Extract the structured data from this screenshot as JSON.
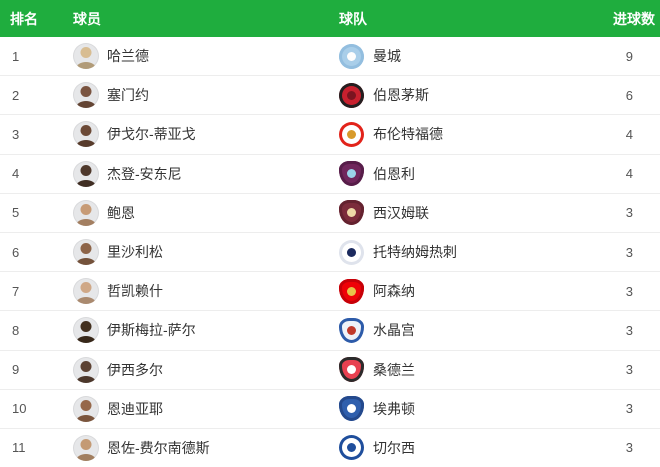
{
  "table": {
    "header_bg": "#1fad3e",
    "headers": {
      "rank": "排名",
      "player": "球员",
      "team": "球队",
      "goals": "进球数"
    },
    "rows": [
      {
        "rank": "1",
        "player": {
          "name": "哈兰德",
          "avatar_tone": "#d8bd92"
        },
        "team": {
          "name": "曼城",
          "badge": {
            "shape": "circle",
            "bg": "#a9cee9",
            "ring": "#93bedf",
            "accent": "#fdfdfd"
          }
        },
        "goals": "9"
      },
      {
        "rank": "2",
        "player": {
          "name": "塞门约",
          "avatar_tone": "#7a5440"
        },
        "team": {
          "name": "伯恩茅斯",
          "badge": {
            "shape": "circle",
            "bg": "#c8202e",
            "ring": "#231f20",
            "accent": "#7a1420"
          }
        },
        "goals": "6"
      },
      {
        "rank": "3",
        "player": {
          "name": "伊戈尔-蒂亚戈",
          "avatar_tone": "#6b4936"
        },
        "team": {
          "name": "布伦特福德",
          "badge": {
            "shape": "circle",
            "bg": "#ffffff",
            "ring": "#e2231a",
            "accent": "#d89a2b"
          }
        },
        "goals": "4"
      },
      {
        "rank": "4",
        "player": {
          "name": "杰登-安东尼",
          "avatar_tone": "#4e382b"
        },
        "team": {
          "name": "伯恩利",
          "badge": {
            "shape": "shield",
            "bg": "#70275d",
            "ring": "#571d49",
            "accent": "#9ad4ea"
          }
        },
        "goals": "4"
      },
      {
        "rank": "5",
        "player": {
          "name": "鲍恩",
          "avatar_tone": "#c79b76"
        },
        "team": {
          "name": "西汉姆联",
          "badge": {
            "shape": "shield",
            "bg": "#7c2c3b",
            "ring": "#64222f",
            "accent": "#efd9a7"
          }
        },
        "goals": "3"
      },
      {
        "rank": "6",
        "player": {
          "name": "里沙利松",
          "avatar_tone": "#8d6448"
        },
        "team": {
          "name": "托特纳姆热刺",
          "badge": {
            "shape": "circle",
            "bg": "#ffffff",
            "ring": "#dfe3ec",
            "accent": "#1b2a5e"
          }
        },
        "goals": "3"
      },
      {
        "rank": "7",
        "player": {
          "name": "哲凯赖什",
          "avatar_tone": "#cfa887"
        },
        "team": {
          "name": "阿森纳",
          "badge": {
            "shape": "shield",
            "bg": "#ef0107",
            "ring": "#c60008",
            "accent": "#e8c24a"
          }
        },
        "goals": "3"
      },
      {
        "rank": "8",
        "player": {
          "name": "伊斯梅拉-萨尔",
          "avatar_tone": "#43301f"
        },
        "team": {
          "name": "水晶宫",
          "badge": {
            "shape": "shield",
            "bg": "#eef2f9",
            "ring": "#2d5ba9",
            "accent": "#c0392b"
          }
        },
        "goals": "3"
      },
      {
        "rank": "9",
        "player": {
          "name": "伊西多尔",
          "avatar_tone": "#5d4334"
        },
        "team": {
          "name": "桑德兰",
          "badge": {
            "shape": "shield",
            "bg": "#e84050",
            "ring": "#2b2b2b",
            "accent": "#ffffff"
          }
        },
        "goals": "3"
      },
      {
        "rank": "10",
        "player": {
          "name": "恩迪亚耶",
          "avatar_tone": "#96684a"
        },
        "team": {
          "name": "埃弗顿",
          "badge": {
            "shape": "shield",
            "bg": "#2f5fad",
            "ring": "#24498c",
            "accent": "#ffffff"
          }
        },
        "goals": "3"
      },
      {
        "rank": "11",
        "player": {
          "name": "恩佐-费尔南德斯",
          "avatar_tone": "#c49a74"
        },
        "team": {
          "name": "切尔西",
          "badge": {
            "shape": "circle",
            "bg": "#ffffff",
            "ring": "#1f4e9c",
            "accent": "#1f4e9c"
          }
        },
        "goals": "3"
      }
    ]
  }
}
